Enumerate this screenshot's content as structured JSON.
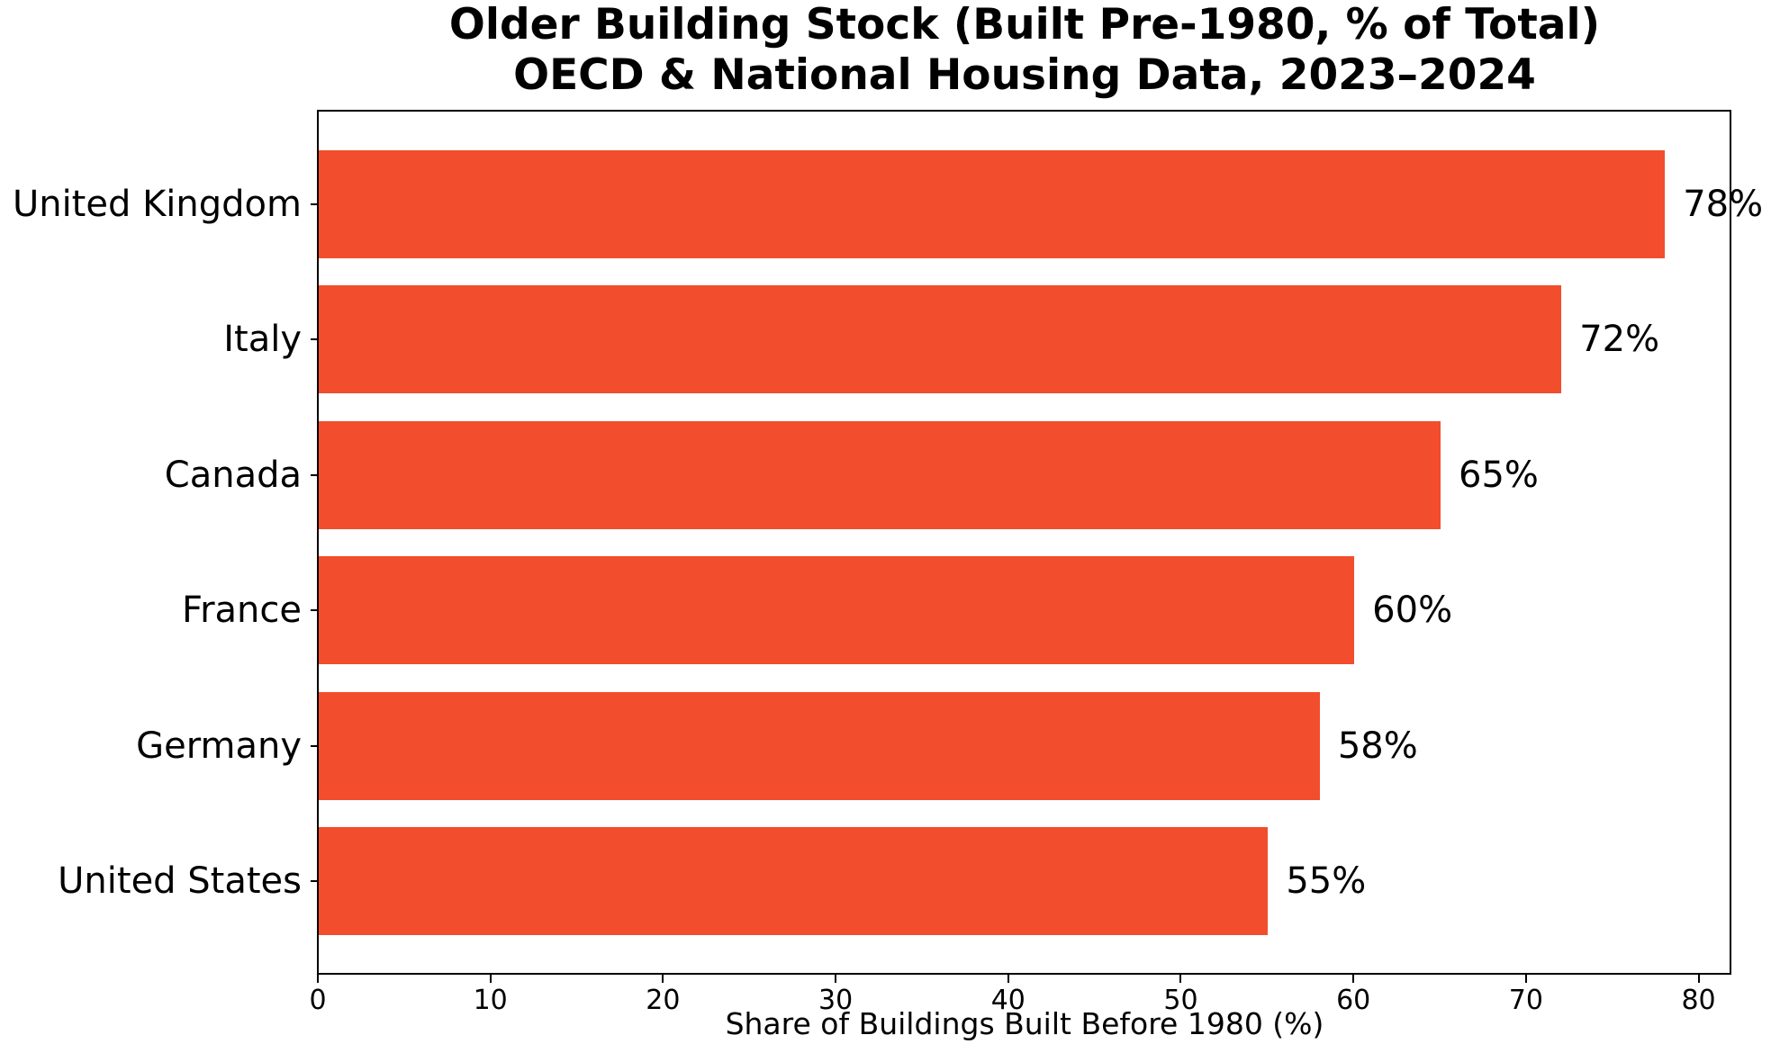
{
  "chart_data": {
    "type": "bar",
    "orientation": "horizontal",
    "title": "Older Building Stock (Built Pre-1980, % of Total)",
    "subtitle": "OECD & National Housing Data, 2023–2024",
    "categories": [
      "United Kingdom",
      "Italy",
      "Canada",
      "France",
      "Germany",
      "United States"
    ],
    "values": [
      78,
      72,
      65,
      60,
      58,
      55
    ],
    "value_labels": [
      "78%",
      "72%",
      "65%",
      "60%",
      "58%",
      "55%"
    ],
    "xlabel": "Share of Buildings Built Before 1980 (%)",
    "xlim": [
      0,
      81.9
    ],
    "xticks": [
      0,
      10,
      20,
      30,
      40,
      50,
      60,
      70,
      80
    ],
    "grid": false,
    "bar_color": "#F24D2C",
    "text_color": "#000000",
    "spine_color": "#000000",
    "background_color": "#FFFFFF"
  }
}
